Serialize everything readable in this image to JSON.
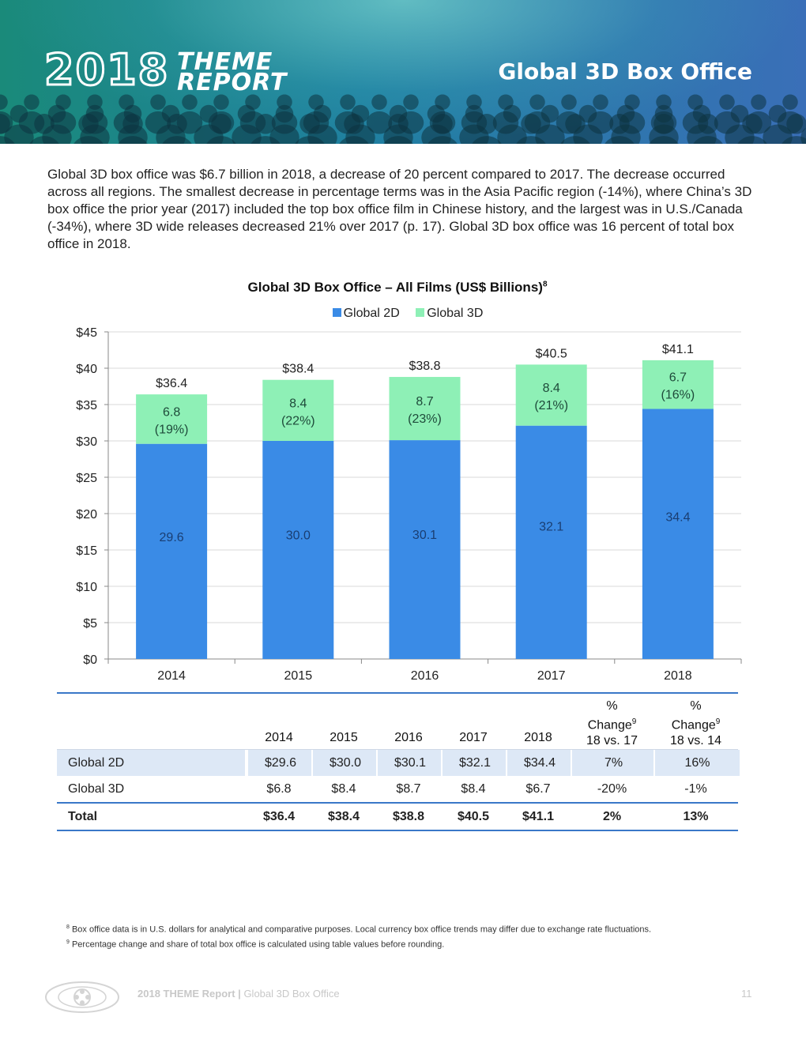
{
  "header": {
    "logo_year": "2018",
    "logo_line1": "THEME",
    "logo_line2": "REPORT",
    "title": "Global 3D Box Office"
  },
  "intro": "Global 3D box office was $6.7 billion in 2018, a decrease of 20 percent compared to 2017. The decrease occurred across all regions. The smallest decrease in percentage terms was in the Asia Pacific region (-14%), where China’s 3D box office the prior year (2017) included the top box office film in Chinese history, and the largest was in U.S./Canada (-34%), where 3D wide releases decreased 21% over 2017 (p. 17). Global 3D box office was 16 percent of total box office in 2018.",
  "chart_data": {
    "type": "bar",
    "stacked": true,
    "title": "Global 3D Box Office – All Films (US$ Billions)",
    "title_footnote": "8",
    "categories": [
      "2014",
      "2015",
      "2016",
      "2017",
      "2018"
    ],
    "series": [
      {
        "name": "Global 2D",
        "color": "#3a8be6",
        "values": [
          29.6,
          30.0,
          30.1,
          32.1,
          34.4
        ],
        "labels": [
          "29.6",
          "30.0",
          "30.1",
          "32.1",
          "34.4"
        ]
      },
      {
        "name": "Global 3D",
        "color": "#8ef0b6",
        "values": [
          6.8,
          8.4,
          8.7,
          8.4,
          6.7
        ],
        "labels": [
          "6.8",
          "8.4",
          "8.7",
          "8.4",
          "6.7"
        ],
        "share_labels": [
          "(19%)",
          "(22%)",
          "(23%)",
          "(21%)",
          "(16%)"
        ]
      }
    ],
    "totals": [
      "$36.4",
      "$38.4",
      "$38.8",
      "$40.5",
      "$41.1"
    ],
    "ylim": [
      0,
      45
    ],
    "yticks": [
      0,
      5,
      10,
      15,
      20,
      25,
      30,
      35,
      40,
      45
    ],
    "ytick_labels": [
      "$0",
      "$5",
      "$10",
      "$15",
      "$20",
      "$25",
      "$30",
      "$35",
      "$40",
      "$45"
    ],
    "grid": true,
    "legend_position": "top-center"
  },
  "table": {
    "headers": [
      "2014",
      "2015",
      "2016",
      "2017",
      "2018"
    ],
    "pct_header_1": {
      "l1": "%",
      "l2": "Change",
      "fn": "9",
      "l3": "18 vs. 17"
    },
    "pct_header_2": {
      "l1": "%",
      "l2": "Change",
      "fn": "9",
      "l3": "18 vs. 14"
    },
    "rows": [
      {
        "label": "Global 2D",
        "values": [
          "$29.6",
          "$30.0",
          "$30.1",
          "$32.1",
          "$34.4"
        ],
        "chg1": "7%",
        "chg2": "16%"
      },
      {
        "label": "Global 3D",
        "values": [
          "$6.8",
          "$8.4",
          "$8.7",
          "$8.4",
          "$6.7"
        ],
        "chg1": "-20%",
        "chg2": "-1%"
      }
    ],
    "total": {
      "label": "Total",
      "values": [
        "$36.4",
        "$38.4",
        "$38.8",
        "$40.5",
        "$41.1"
      ],
      "chg1": "2%",
      "chg2": "13%"
    }
  },
  "footnotes": [
    {
      "num": "8",
      "text": "Box office data is in U.S. dollars for analytical and comparative purposes. Local currency box office trends may differ due to exchange rate fluctuations."
    },
    {
      "num": "9",
      "text": "Percentage change and share of total box office is calculated using table values before rounding."
    }
  ],
  "footer": {
    "report": "2018 THEME Report",
    "separator": "|",
    "section": "Global 3D Box Office",
    "page": "11"
  }
}
